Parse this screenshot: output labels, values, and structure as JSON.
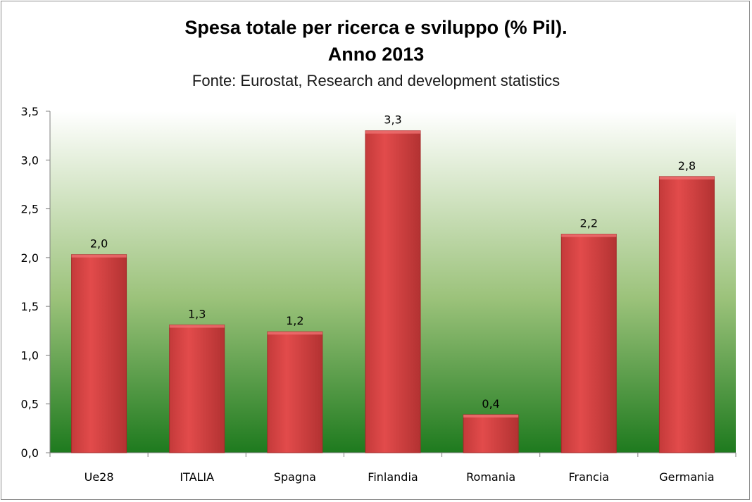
{
  "chart_data": {
    "type": "bar",
    "title": "Spesa totale per ricerca e sviluppo (% Pil).",
    "title_line2": "Anno 2013",
    "subtitle": "Fonte: Eurostat, Research and development statistics",
    "categories": [
      "Ue28",
      "ITALIA",
      "Spagna",
      "Finlandia",
      "Romania",
      "Francia",
      "Germania"
    ],
    "values": [
      2.03,
      1.31,
      1.24,
      3.3,
      0.39,
      2.24,
      2.83
    ],
    "data_labels": [
      "2,0",
      "1,3",
      "1,2",
      "3,3",
      "0,4",
      "2,2",
      "2,8"
    ],
    "y_ticks": [
      "0,0",
      "0,5",
      "1,0",
      "1,5",
      "2,0",
      "2,5",
      "3,0",
      "3,5"
    ],
    "ylim": [
      0,
      3.5
    ],
    "xlabel": "",
    "ylabel": "",
    "grid": false,
    "legend": "none",
    "colors": {
      "bar": "#d94040",
      "bar_edge": "#a52a2a",
      "plot_top": "#ffffff",
      "plot_bottom": "#1e7a1e"
    }
  }
}
